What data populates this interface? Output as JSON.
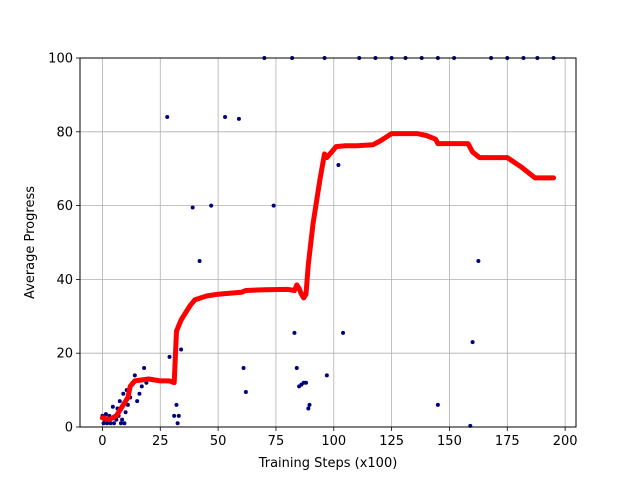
{
  "chart_data": {
    "type": "scatter",
    "title": "",
    "xlabel": "Training Steps (x100)",
    "ylabel": "Average Progress",
    "xlim": [
      -9.7,
      204.7
    ],
    "ylim": [
      0,
      100
    ],
    "xticks": [
      0,
      25,
      50,
      75,
      100,
      125,
      150,
      175,
      200
    ],
    "yticks": [
      0,
      20,
      40,
      60,
      80,
      100
    ],
    "grid": true,
    "legend": "none",
    "colors": {
      "points": "#00007f",
      "line": "#ff0000",
      "grid": "#b0b0b0"
    },
    "series": [
      {
        "kind": "scatter",
        "points": [
          [
            0,
            3
          ],
          [
            0.5,
            1
          ],
          [
            1,
            2
          ],
          [
            1.5,
            3.5
          ],
          [
            2,
            1
          ],
          [
            2.5,
            2
          ],
          [
            3,
            3
          ],
          [
            3.5,
            1
          ],
          [
            4,
            2.5
          ],
          [
            4.5,
            5.5
          ],
          [
            5,
            1
          ],
          [
            5.5,
            3
          ],
          [
            6,
            2
          ],
          [
            6.5,
            5
          ],
          [
            7,
            3
          ],
          [
            7.5,
            7
          ],
          [
            8,
            1
          ],
          [
            8.5,
            2
          ],
          [
            9,
            9
          ],
          [
            9.5,
            1
          ],
          [
            10,
            4
          ],
          [
            10.5,
            10
          ],
          [
            11,
            6
          ],
          [
            12,
            8
          ],
          [
            13,
            12
          ],
          [
            14,
            14
          ],
          [
            15,
            7
          ],
          [
            16,
            9
          ],
          [
            17,
            11
          ],
          [
            18,
            16
          ],
          [
            19,
            12
          ],
          [
            20,
            13
          ],
          [
            28,
            84
          ],
          [
            29,
            19
          ],
          [
            31,
            3
          ],
          [
            32,
            6
          ],
          [
            32.5,
            1
          ],
          [
            33,
            3
          ],
          [
            34,
            21
          ],
          [
            39,
            59.5
          ],
          [
            42,
            45
          ],
          [
            47,
            60
          ],
          [
            53,
            84
          ],
          [
            59,
            83.5
          ],
          [
            61,
            16
          ],
          [
            62,
            9.5
          ],
          [
            74,
            60
          ],
          [
            83,
            25.5
          ],
          [
            84,
            16
          ],
          [
            85,
            11
          ],
          [
            86,
            11.5
          ],
          [
            87,
            12
          ],
          [
            88,
            12
          ],
          [
            89,
            5
          ],
          [
            89.5,
            6
          ],
          [
            97,
            14
          ],
          [
            102,
            71
          ],
          [
            104,
            25.5
          ],
          [
            145,
            6
          ],
          [
            159,
            0.3
          ],
          [
            160,
            23
          ],
          [
            162.5,
            45
          ],
          [
            70,
            100
          ],
          [
            82,
            100
          ],
          [
            96,
            100
          ],
          [
            111,
            100
          ],
          [
            118,
            100
          ],
          [
            125,
            100
          ],
          [
            131,
            100
          ],
          [
            138,
            100
          ],
          [
            145,
            100
          ],
          [
            152,
            100
          ],
          [
            168,
            100
          ],
          [
            175,
            100
          ],
          [
            182,
            100
          ],
          [
            188,
            100
          ],
          [
            195,
            100
          ]
        ]
      },
      {
        "kind": "line",
        "points": [
          [
            0,
            2.5
          ],
          [
            3,
            2
          ],
          [
            6,
            3
          ],
          [
            9,
            6
          ],
          [
            11,
            8
          ],
          [
            12,
            11
          ],
          [
            14,
            12.5
          ],
          [
            20,
            13
          ],
          [
            25,
            12.5
          ],
          [
            29,
            12.5
          ],
          [
            31,
            12
          ],
          [
            32,
            26
          ],
          [
            34,
            29
          ],
          [
            36,
            31
          ],
          [
            38,
            33
          ],
          [
            40,
            34.5
          ],
          [
            45,
            35.5
          ],
          [
            50,
            36
          ],
          [
            60,
            36.5
          ],
          [
            62,
            37
          ],
          [
            70,
            37.2
          ],
          [
            80,
            37.3
          ],
          [
            83,
            37
          ],
          [
            84,
            38.5
          ],
          [
            85,
            37.5
          ],
          [
            86,
            36
          ],
          [
            87,
            35
          ],
          [
            88,
            36
          ],
          [
            89,
            44
          ],
          [
            91,
            55
          ],
          [
            94,
            67
          ],
          [
            96,
            74
          ],
          [
            97,
            73
          ],
          [
            99,
            74.5
          ],
          [
            101,
            76
          ],
          [
            105,
            76.2
          ],
          [
            110,
            76.2
          ],
          [
            117,
            76.5
          ],
          [
            120,
            77.5
          ],
          [
            125,
            79.5
          ],
          [
            130,
            79.5
          ],
          [
            136,
            79.5
          ],
          [
            140,
            79
          ],
          [
            144,
            78
          ],
          [
            145,
            76.8
          ],
          [
            150,
            76.8
          ],
          [
            155,
            76.8
          ],
          [
            158,
            76.8
          ],
          [
            160,
            74.5
          ],
          [
            163,
            73
          ],
          [
            170,
            73
          ],
          [
            175,
            73
          ],
          [
            181,
            70.5
          ],
          [
            187,
            67.5
          ],
          [
            195,
            67.5
          ]
        ]
      }
    ]
  }
}
